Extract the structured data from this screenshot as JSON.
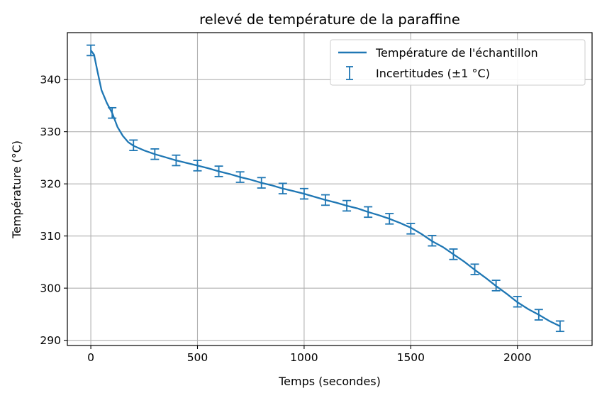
{
  "chart_data": {
    "type": "line",
    "title": "relevé de température de la paraffine",
    "xlabel": "Temps (secondes)",
    "ylabel": "Température (°C)",
    "xlim": [
      -110,
      2350
    ],
    "ylim": [
      289,
      349
    ],
    "xticks": [
      0,
      500,
      1000,
      1500,
      2000
    ],
    "yticks": [
      290,
      300,
      310,
      320,
      330,
      340
    ],
    "grid": true,
    "legend_position": "top-right",
    "line_color": "#1f77b4",
    "series": [
      {
        "name": "Température de l'échantillon",
        "kind": "line",
        "x": [
          0,
          15,
          30,
          50,
          75,
          100,
          125,
          150,
          175,
          200,
          250,
          300,
          350,
          400,
          450,
          500,
          550,
          600,
          650,
          700,
          750,
          800,
          850,
          900,
          950,
          1000,
          1050,
          1100,
          1150,
          1200,
          1250,
          1300,
          1350,
          1400,
          1450,
          1500,
          1550,
          1600,
          1650,
          1700,
          1750,
          1800,
          1850,
          1900,
          1950,
          2000,
          2050,
          2100,
          2150,
          2200
        ],
        "y": [
          345.6,
          344.8,
          341.8,
          338.0,
          335.5,
          333.6,
          330.9,
          329.2,
          328.0,
          327.3,
          326.4,
          325.7,
          325.1,
          324.5,
          324.0,
          323.5,
          323.0,
          322.4,
          321.9,
          321.3,
          320.8,
          320.2,
          319.7,
          319.1,
          318.6,
          318.1,
          317.5,
          316.9,
          316.4,
          315.8,
          315.3,
          314.6,
          314.0,
          313.3,
          312.5,
          311.6,
          310.4,
          309.0,
          307.9,
          306.5,
          305.1,
          303.5,
          302.0,
          300.4,
          298.9,
          297.3,
          296.0,
          294.9,
          293.7,
          292.7
        ]
      },
      {
        "name": "Incertitudes (±1 °C)",
        "kind": "errorbar",
        "x": [
          0,
          100,
          200,
          300,
          400,
          500,
          600,
          700,
          800,
          900,
          1000,
          1100,
          1200,
          1300,
          1400,
          1500,
          1600,
          1700,
          1800,
          1900,
          2000,
          2100,
          2200
        ],
        "y": [
          345.6,
          333.6,
          327.4,
          325.7,
          324.5,
          323.5,
          322.4,
          321.3,
          320.2,
          319.1,
          318.1,
          316.9,
          315.8,
          314.6,
          313.3,
          311.4,
          309.1,
          306.5,
          303.6,
          300.5,
          297.4,
          294.9,
          292.7
        ],
        "error": 1
      }
    ]
  }
}
